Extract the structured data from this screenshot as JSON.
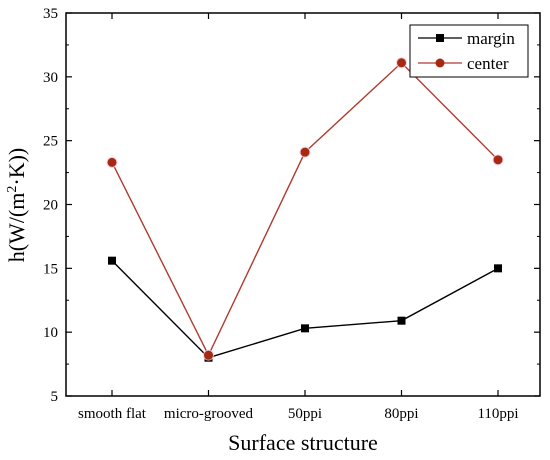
{
  "chart_data": {
    "type": "line",
    "title": "",
    "xlabel": "Surface structure",
    "ylabel": "h(W/(m²·K))",
    "ylabel_parts": {
      "prefix": "h(W/(m",
      "sup": "2",
      "suffix": "·K))"
    },
    "categories": [
      "smooth flat",
      "micro-grooved",
      "50ppi",
      "80ppi",
      "110ppi"
    ],
    "y_ticks": [
      5,
      10,
      15,
      20,
      25,
      30,
      35
    ],
    "y_tick_labels": [
      "5",
      "10",
      "15",
      "20",
      "25",
      "30",
      "35"
    ],
    "ylim": [
      5,
      35
    ],
    "grid": false,
    "legend_position": "top-right",
    "series": [
      {
        "name": "margin",
        "values": [
          15.6,
          8.0,
          10.3,
          10.9,
          15.0
        ],
        "color": "#000000",
        "marker_color": "#000000",
        "marker": "square"
      },
      {
        "name": "center",
        "values": [
          23.3,
          8.2,
          24.1,
          31.1,
          23.5
        ],
        "color": "#b03a2e",
        "marker_color": "#a52a10",
        "marker": "circle"
      }
    ]
  }
}
